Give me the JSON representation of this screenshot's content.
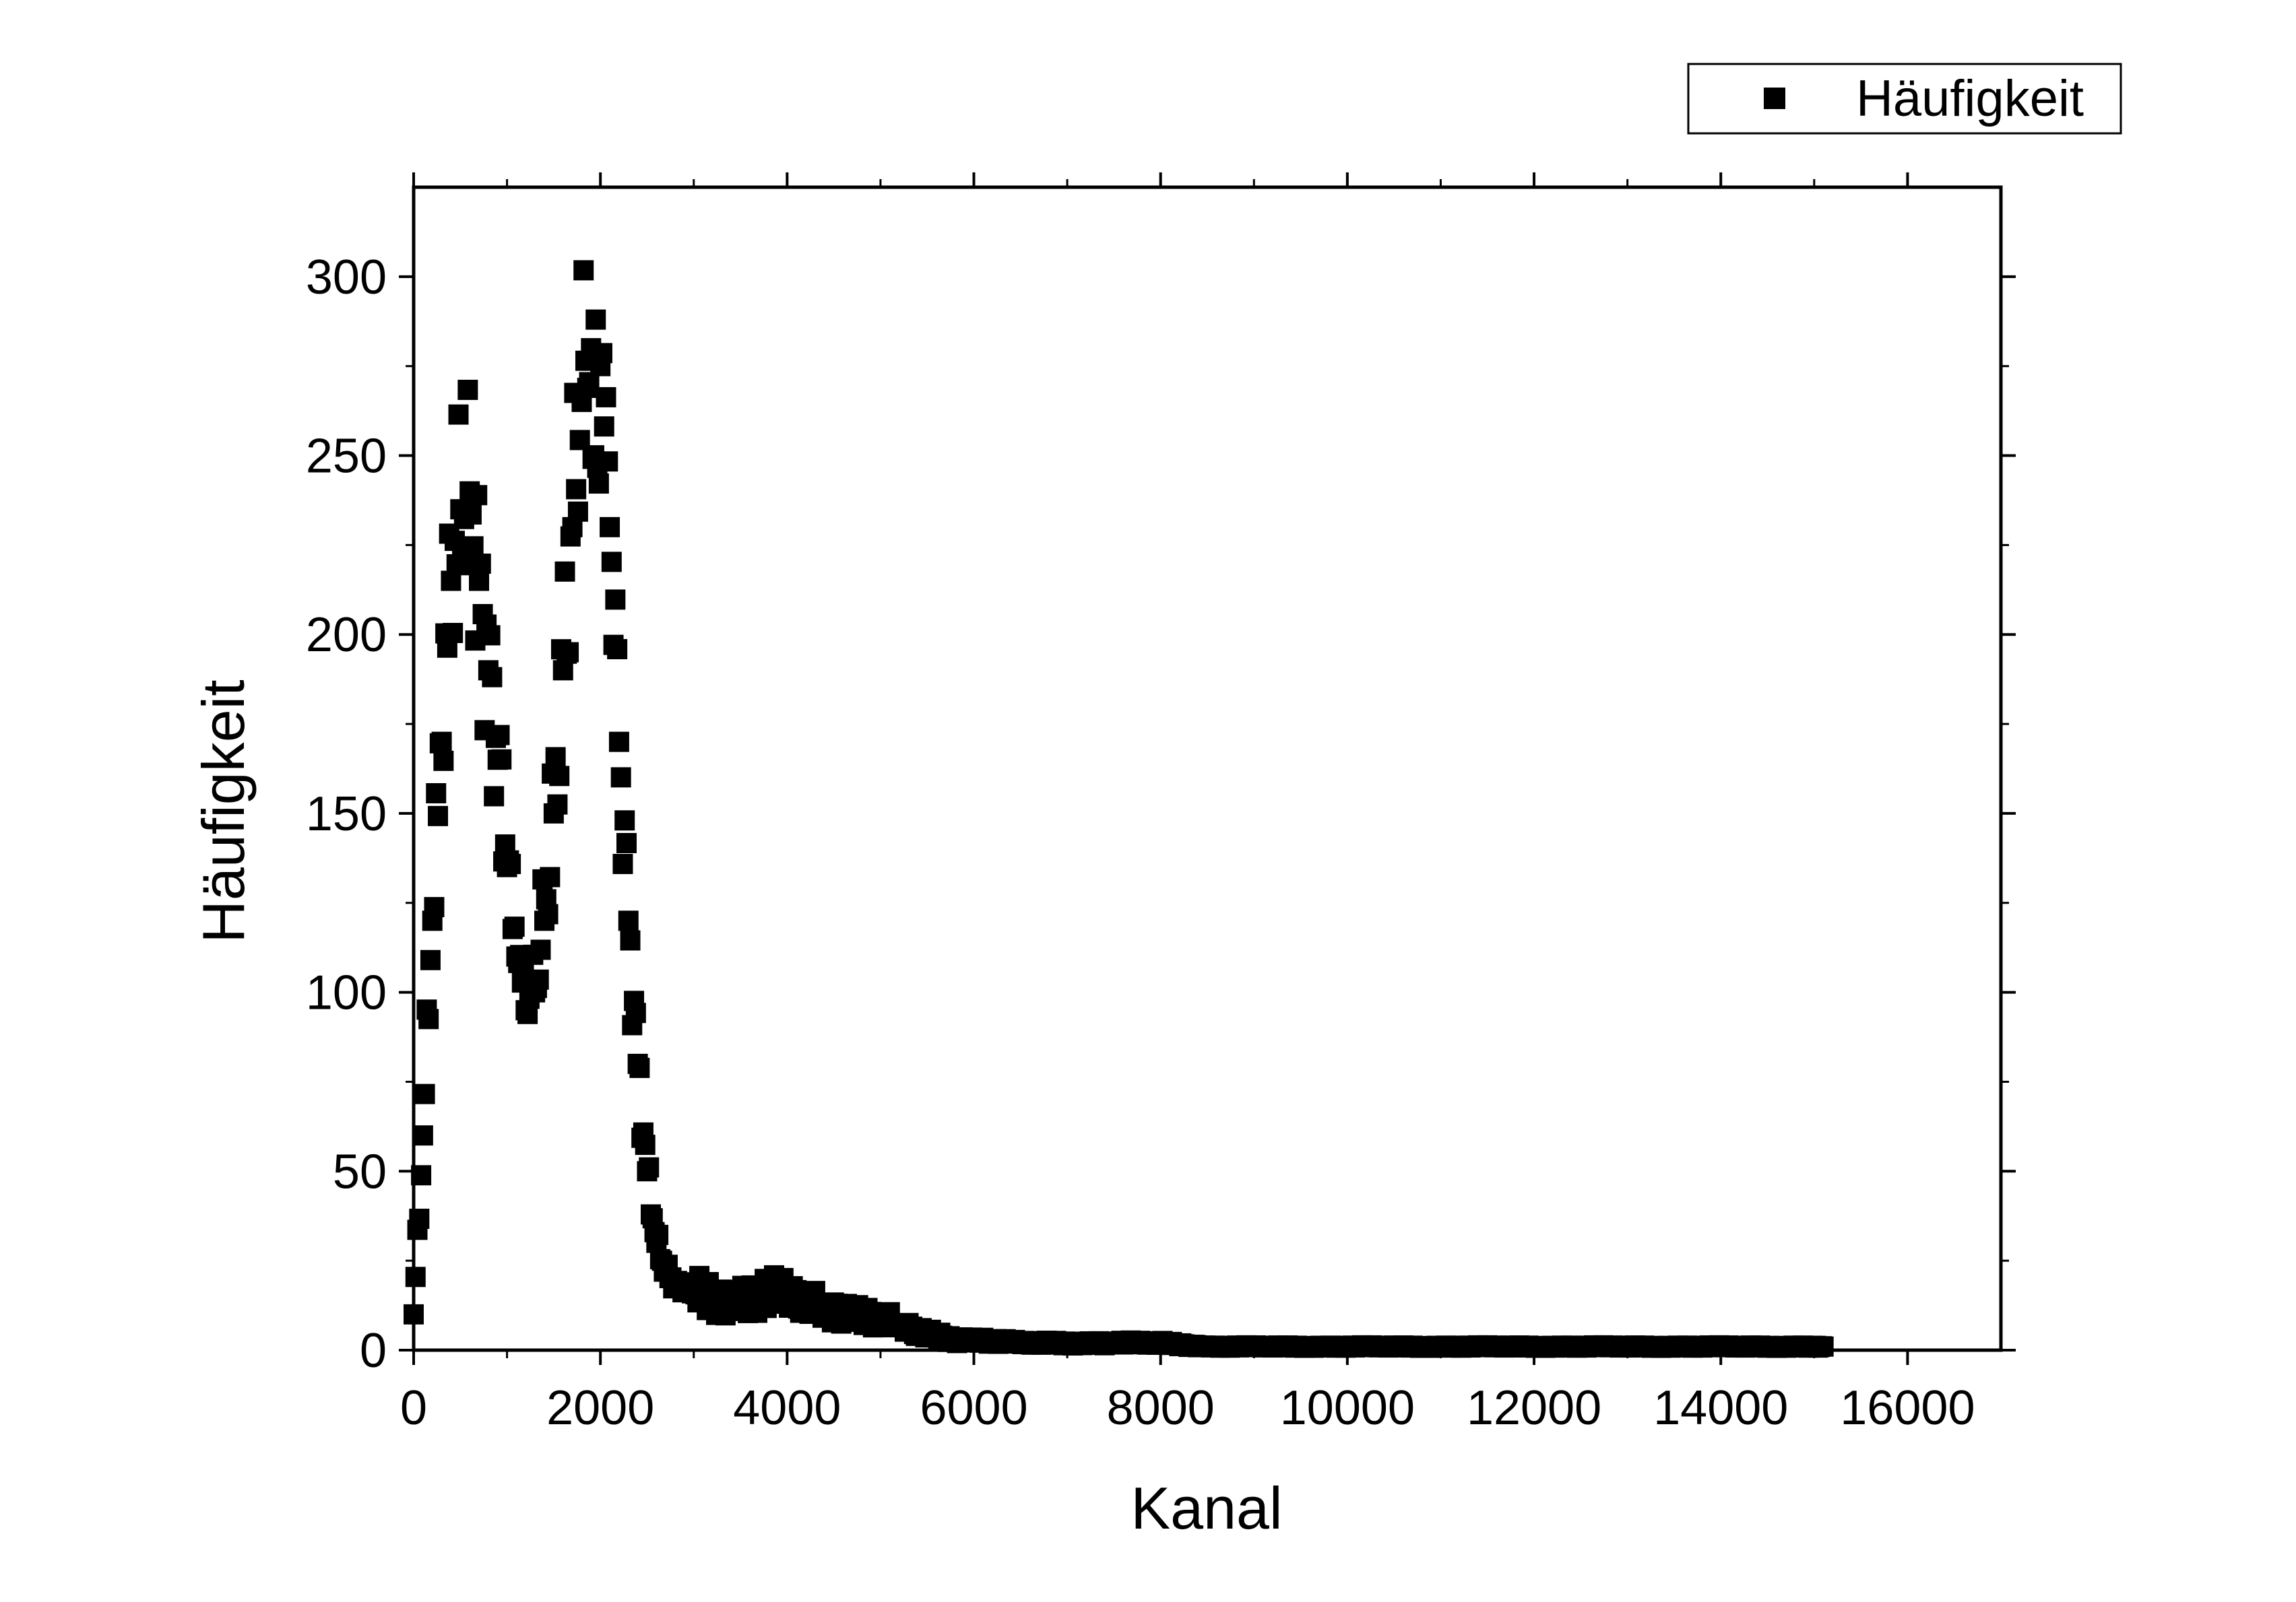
{
  "chart_data": {
    "type": "scatter",
    "xlabel": "Kanal",
    "ylabel": "Häufigkeit",
    "xlim": [
      0,
      17000
    ],
    "ylim": [
      0,
      325
    ],
    "x_ticks": [
      0,
      2000,
      4000,
      6000,
      8000,
      10000,
      12000,
      14000,
      16000
    ],
    "x_tick_labels": [
      "0",
      "2000",
      "4000",
      "6000",
      "8000",
      "10000",
      "12000",
      "14000",
      "16000"
    ],
    "y_ticks": [
      0,
      50,
      100,
      150,
      200,
      250,
      300
    ],
    "y_tick_labels": [
      "0",
      "50",
      "100",
      "150",
      "200",
      "250",
      "300"
    ],
    "grid": false,
    "legend_position": "top-right",
    "marker": "square",
    "color": "#000000",
    "series": [
      {
        "name": "Häufigkeit",
        "x": [
          0,
          100,
          200,
          300,
          400,
          500,
          600,
          700,
          800,
          900,
          1000,
          1100,
          1200,
          1300,
          1400,
          1500,
          1600,
          1700,
          1800,
          1900,
          1950,
          2000,
          2100,
          2200,
          2300,
          2400,
          2500,
          2600,
          2700,
          2800,
          2900,
          3000,
          3200,
          3400,
          3600,
          3800,
          4000,
          4200,
          4400,
          4600,
          4800,
          5000,
          5200,
          5400,
          5600,
          5800,
          6000,
          6500,
          7000,
          7500,
          7800,
          8000,
          8500,
          9000,
          9500,
          10000,
          11000,
          12000,
          13000,
          14000,
          15100
        ],
        "y": [
          10,
          60,
          120,
          170,
          215,
          235,
          240,
          215,
          190,
          165,
          135,
          110,
          95,
          100,
          120,
          150,
          190,
          230,
          265,
          280,
          288,
          275,
          230,
          170,
          120,
          80,
          50,
          30,
          22,
          18,
          17,
          16,
          15,
          14,
          15,
          16,
          15,
          13,
          12,
          11,
          10,
          9,
          7,
          5,
          4,
          3,
          3,
          2,
          2,
          2,
          2,
          2,
          1,
          1,
          1,
          1,
          1,
          1,
          1,
          1,
          1
        ]
      }
    ]
  }
}
